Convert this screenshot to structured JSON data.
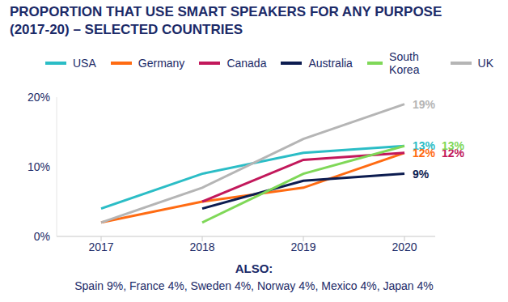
{
  "chart_data": {
    "type": "line",
    "title": "PROPORTION THAT USE SMART SPEAKERS FOR ANY PURPOSE\n(2017-20) – SELECTED COUNTRIES",
    "categories": [
      "2017",
      "2018",
      "2019",
      "2020"
    ],
    "series": [
      {
        "name": "USA",
        "color": "#2bbdc6",
        "values": [
          4,
          9,
          12,
          13
        ],
        "value_labels": [
          null,
          null,
          null,
          "13%"
        ]
      },
      {
        "name": "Germany",
        "color": "#ff6b12",
        "values": [
          2,
          5,
          7,
          12
        ],
        "value_labels": [
          null,
          null,
          null,
          "12%"
        ]
      },
      {
        "name": "Canada",
        "color": "#c2185b",
        "values": [
          null,
          5,
          11,
          12
        ],
        "value_labels": [
          null,
          null,
          null,
          "12%"
        ]
      },
      {
        "name": "Australia",
        "color": "#0c1c50",
        "values": [
          null,
          4,
          8,
          9
        ],
        "value_labels": [
          null,
          null,
          null,
          "9%"
        ]
      },
      {
        "name": "South Korea",
        "color": "#7fd858",
        "values": [
          null,
          2,
          9,
          13
        ],
        "value_labels": [
          null,
          null,
          null,
          "13%"
        ]
      },
      {
        "name": "UK",
        "color": "#b5b5b5",
        "values": [
          2,
          7,
          14,
          19
        ],
        "value_labels": [
          null,
          null,
          null,
          "19%"
        ]
      }
    ],
    "ylim": [
      0,
      20
    ],
    "yticks": [
      {
        "value": 0,
        "label": "0%"
      },
      {
        "value": 10,
        "label": "10%"
      },
      {
        "value": 20,
        "label": "20%"
      }
    ],
    "grid": false,
    "data_labels": true,
    "annotation": {
      "title": "ALSO:",
      "text": "Spain 9%, France 4%, Sweden 4%, Norway 4%, Mexico 4%, Japan 4%"
    }
  }
}
